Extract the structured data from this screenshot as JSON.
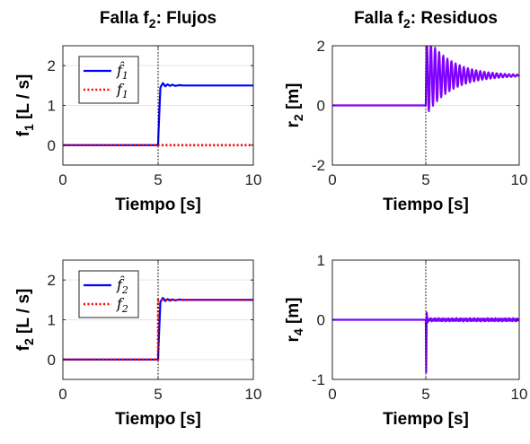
{
  "chart_data": [
    {
      "type": "line",
      "title": "Falla f2: Flujos",
      "title_parts": {
        "base": "Falla f",
        "sub": "2",
        "rest": ": Flujos"
      },
      "xlabel": "Tiempo [s]",
      "ylabel": "f1 [L / s]",
      "ylabel_parts": {
        "base": "f",
        "sub": "1",
        "rest": " [L / s]"
      },
      "xlim": [
        0,
        10
      ],
      "ylim": [
        -0.5,
        2.5
      ],
      "xticks": [
        0,
        5,
        10
      ],
      "yticks": [
        0,
        1,
        2
      ],
      "grid": true,
      "vline_x": 5,
      "legend": {
        "position": "top-left",
        "entries": [
          {
            "label": "f̂1",
            "base": "f̂",
            "sub": "1",
            "color": "#0000ff",
            "style": "solid"
          },
          {
            "label": "f1",
            "base": "f",
            "sub": "1",
            "color": "#ff0000",
            "style": "dotted"
          }
        ]
      },
      "series": [
        {
          "name": "f̂1",
          "color": "#0000ff",
          "style": "solid",
          "x": [
            0,
            5,
            5.02,
            5.12,
            5.25,
            5.38,
            5.5,
            5.62,
            5.75,
            5.9,
            6.1,
            6.3,
            6.6,
            7.0,
            10
          ],
          "y": [
            0,
            0,
            0.3,
            1.45,
            1.56,
            1.48,
            1.53,
            1.49,
            1.52,
            1.49,
            1.51,
            1.5,
            1.5,
            1.5,
            1.5
          ]
        },
        {
          "name": "f1",
          "color": "#ff0000",
          "style": "dotted",
          "x": [
            0,
            10
          ],
          "y": [
            0,
            0
          ]
        }
      ]
    },
    {
      "type": "line",
      "title": "Falla f2: Residuos",
      "title_parts": {
        "base": "Falla f",
        "sub": "2",
        "rest": ": Residuos"
      },
      "xlabel": "Tiempo [s]",
      "ylabel": "r2 [m]",
      "ylabel_parts": {
        "base": "r",
        "sub": "2",
        "rest": " [m]"
      },
      "xlim": [
        0,
        10
      ],
      "ylim": [
        -2,
        2
      ],
      "xticks": [
        0,
        5,
        10
      ],
      "yticks": [
        -2,
        0,
        2
      ],
      "grid": true,
      "vline_x": 5,
      "series": [
        {
          "name": "r2",
          "color": "#7f00ff",
          "style": "solid",
          "model": {
            "kind": "damped",
            "t0": 5,
            "base": 0,
            "final": 1,
            "amp": 1.35,
            "decay": 0.75,
            "period": 0.22,
            "t_end": 10
          }
        }
      ]
    },
    {
      "type": "line",
      "title": "",
      "xlabel": "Tiempo [s]",
      "ylabel": "f2 [L / s]",
      "ylabel_parts": {
        "base": "f",
        "sub": "2",
        "rest": " [L / s]"
      },
      "xlim": [
        0,
        10
      ],
      "ylim": [
        -0.5,
        2.5
      ],
      "xticks": [
        0,
        5,
        10
      ],
      "yticks": [
        0,
        1,
        2
      ],
      "grid": true,
      "vline_x": 5,
      "legend": {
        "position": "top-left",
        "entries": [
          {
            "label": "f̂2",
            "base": "f̂",
            "sub": "2",
            "color": "#0000ff",
            "style": "solid"
          },
          {
            "label": "f2",
            "base": "f",
            "sub": "2",
            "color": "#ff0000",
            "style": "dotted"
          }
        ]
      },
      "series": [
        {
          "name": "f̂2",
          "color": "#0000ff",
          "style": "solid",
          "x": [
            0,
            5,
            5.02,
            5.12,
            5.25,
            5.38,
            5.5,
            5.62,
            5.75,
            5.9,
            6.1,
            6.3,
            6.6,
            7.0,
            10
          ],
          "y": [
            0,
            0,
            0.3,
            1.45,
            1.55,
            1.47,
            1.52,
            1.48,
            1.51,
            1.49,
            1.51,
            1.5,
            1.5,
            1.5,
            1.5
          ]
        },
        {
          "name": "f2",
          "color": "#ff0000",
          "style": "dotted",
          "x": [
            0,
            5,
            5.0,
            10
          ],
          "y": [
            0,
            0,
            1.5,
            1.5
          ]
        }
      ]
    },
    {
      "type": "line",
      "title": "",
      "xlabel": "Tiempo [s]",
      "ylabel": "r4 [m]",
      "ylabel_parts": {
        "base": "r",
        "sub": "4",
        "rest": " [m]"
      },
      "xlim": [
        0,
        10
      ],
      "ylim": [
        -1,
        1
      ],
      "xticks": [
        0,
        5,
        10
      ],
      "yticks": [
        -1,
        0,
        1
      ],
      "grid": true,
      "vline_x": 5,
      "series": [
        {
          "name": "r4",
          "color": "#7f00ff",
          "style": "solid",
          "model": {
            "kind": "spike",
            "t0": 5,
            "spike_min": -0.88,
            "spike_max": 0.12,
            "noise": 0.03,
            "period": 0.08,
            "t_end": 10
          }
        }
      ]
    }
  ]
}
